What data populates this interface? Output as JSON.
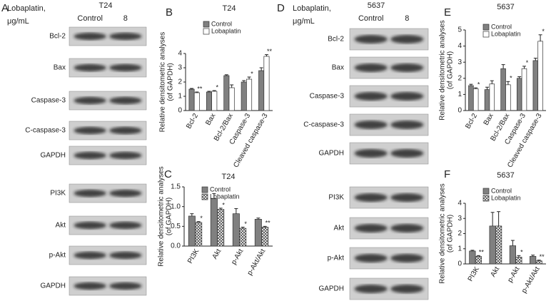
{
  "blots": [
    {
      "panel_label": "A",
      "header": "Lobaplatin,",
      "unit": "μg/mL",
      "title": "T24",
      "lanes": [
        "Control",
        "8"
      ],
      "rows": [
        "Bcl-2",
        "Bax",
        "Caspase-3",
        "C-caspase-3",
        "GAPDH",
        "PI3K",
        "Akt",
        "p-Akt",
        "GAPDH"
      ]
    },
    {
      "panel_label": "D",
      "header": "Lobaplatin,",
      "unit": "μg/mL",
      "title": "5637",
      "lanes": [
        "Control",
        "8"
      ],
      "rows": [
        "Bcl-2",
        "Bax",
        "Caspase-3",
        "C-caspase-3",
        "GAPDH",
        "PI3K",
        "Akt",
        "p-Akt",
        "GAPDH"
      ]
    }
  ],
  "chart_data": [
    {
      "type": "bar",
      "panel_label": "B",
      "title": "T24",
      "ylabel": [
        "Relative densitometric analyses",
        "(of GAPDH)"
      ],
      "categories": [
        "Bcl-2",
        "Bax",
        "Bcl-2/Bax",
        "Caspase-3",
        "Cleaved caspase-3"
      ],
      "series": [
        {
          "name": "Control",
          "color": "#808080",
          "values": [
            1.5,
            1.3,
            2.45,
            2.0,
            2.8
          ],
          "errors": [
            0.05,
            0.05,
            0.06,
            0.1,
            0.2
          ],
          "annotations": [
            null,
            null,
            null,
            null,
            null
          ]
        },
        {
          "name": "Lobaplatin",
          "color": "#ffffff",
          "values": [
            1.25,
            1.35,
            1.6,
            2.2,
            3.8
          ],
          "errors": [
            0.05,
            0.05,
            0.2,
            0.15,
            0.12
          ],
          "annotations": [
            "**",
            "*",
            null,
            "*",
            "**"
          ]
        }
      ],
      "ylim": [
        0,
        4
      ],
      "yticks": [
        0,
        1,
        2,
        3,
        4
      ],
      "legend": "top-left"
    },
    {
      "type": "bar",
      "panel_label": "C",
      "title": "T24",
      "ylabel": [
        "Relative densitometric analyses",
        "(of GAPDH)"
      ],
      "categories": [
        "PI3K",
        "Akt",
        "p-Akt",
        "p-Akt/Akt"
      ],
      "series": [
        {
          "name": "Control",
          "color": "#808080",
          "values": [
            0.76,
            1.2,
            0.82,
            0.68
          ],
          "errors": [
            0.06,
            0.13,
            0.13,
            0.03
          ],
          "annotations": [
            null,
            null,
            null,
            null
          ]
        },
        {
          "name": "Lobaplatin",
          "color": "#ffffff",
          "pattern": "crosshatch",
          "values": [
            0.6,
            0.93,
            0.45,
            0.48
          ],
          "errors": [
            0.02,
            0.03,
            0.03,
            0.02
          ],
          "annotations": [
            "*",
            "*",
            "*",
            "**"
          ]
        }
      ],
      "ylim": [
        0,
        1.5
      ],
      "yticks": [
        {
          "value": 0,
          "label": "0.0"
        },
        {
          "value": 0.5,
          "label": "0.5"
        },
        {
          "value": 1,
          "label": "1.0"
        },
        {
          "value": 1.5,
          "label": "1.5"
        }
      ],
      "legend": "top-left"
    },
    {
      "type": "bar",
      "panel_label": "E",
      "title": "5637",
      "ylabel": [
        "Relative densitometric analyses",
        "(of GAPDH)"
      ],
      "categories": [
        "Bcl-2",
        "Bax",
        "Bcl-2/Bax",
        "Caspase-3",
        "Cleaved caspase-3"
      ],
      "series": [
        {
          "name": "Control",
          "color": "#808080",
          "values": [
            1.55,
            1.3,
            2.6,
            2.0,
            3.1
          ],
          "errors": [
            0.08,
            0.15,
            0.25,
            0.1,
            0.15
          ],
          "annotations": [
            null,
            null,
            null,
            null,
            null
          ]
        },
        {
          "name": "Lobaplatin",
          "color": "#ffffff",
          "values": [
            1.35,
            1.65,
            1.6,
            2.6,
            4.3
          ],
          "errors": [
            0.06,
            0.2,
            0.2,
            0.15,
            0.4
          ],
          "annotations": [
            "*",
            null,
            "*",
            "*",
            "*"
          ]
        }
      ],
      "ylim": [
        0,
        5
      ],
      "yticks": [
        0,
        1,
        2,
        3,
        4,
        5
      ],
      "legend": "top-left"
    },
    {
      "type": "bar",
      "panel_label": "F",
      "title": "5637",
      "ylabel": [
        "Relative densitometric analyses",
        "(of GAPDH)"
      ],
      "categories": [
        "PI3K",
        "Akt",
        "p-Akt",
        "p-Akt/Akt"
      ],
      "series": [
        {
          "name": "Control",
          "color": "#808080",
          "values": [
            0.85,
            2.5,
            1.2,
            0.5
          ],
          "errors": [
            0.05,
            0.9,
            0.35,
            0.08
          ],
          "annotations": [
            null,
            null,
            null,
            null
          ]
        },
        {
          "name": "Lobaplatin",
          "color": "#ffffff",
          "pattern": "crosshatch",
          "values": [
            0.5,
            2.5,
            0.45,
            0.2
          ],
          "errors": [
            0.05,
            0.95,
            0.1,
            0.05
          ],
          "annotations": [
            "**",
            null,
            "*",
            "**"
          ]
        }
      ],
      "ylim": [
        0,
        4
      ],
      "yticks": [
        0,
        1,
        2,
        3,
        4
      ],
      "legend": "top-left"
    }
  ]
}
